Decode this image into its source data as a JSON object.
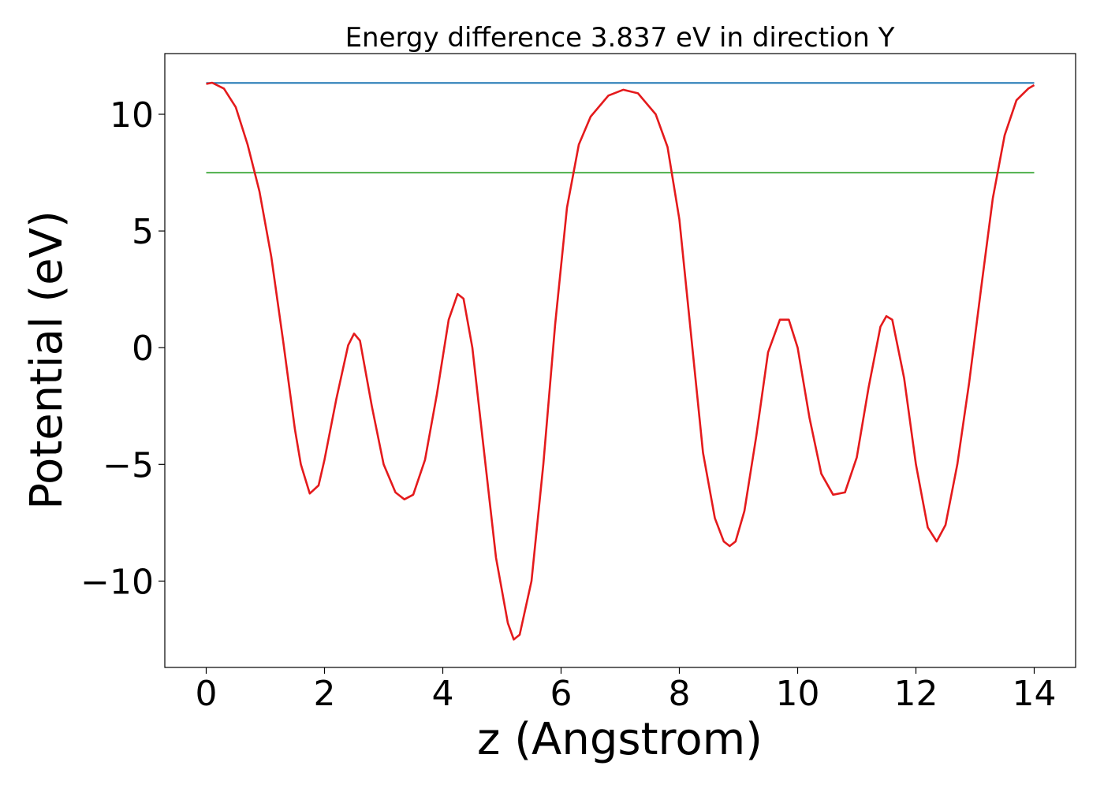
{
  "chart_data": {
    "type": "line",
    "title": "Energy difference 3.837 eV in direction Y",
    "xlabel": "z (Angstrom)",
    "ylabel": "Potential (eV)",
    "xlim": [
      -0.7,
      14.7
    ],
    "ylim": [
      -13.7,
      12.6
    ],
    "xticks": [
      0,
      2,
      4,
      6,
      8,
      10,
      12,
      14
    ],
    "yticks": [
      -10,
      -5,
      0,
      5,
      10
    ],
    "xtick_labels": [
      "0",
      "2",
      "4",
      "6",
      "8",
      "10",
      "12",
      "14"
    ],
    "ytick_labels": [
      "−10",
      "−5",
      "0",
      "5",
      "10"
    ],
    "grid": false,
    "legend": "none",
    "series": [
      {
        "color": "#e41a1c",
        "x": [
          0,
          0.1,
          0.3,
          0.5,
          0.7,
          0.9,
          1.1,
          1.3,
          1.5,
          1.6,
          1.75,
          1.9,
          2.0,
          2.2,
          2.4,
          2.5,
          2.6,
          2.8,
          3.0,
          3.2,
          3.35,
          3.5,
          3.7,
          3.9,
          4.1,
          4.25,
          4.35,
          4.5,
          4.7,
          4.9,
          5.1,
          5.2,
          5.3,
          5.5,
          5.7,
          5.9,
          6.1,
          6.3,
          6.5,
          6.8,
          7.05,
          7.3,
          7.6,
          7.8,
          8.0,
          8.2,
          8.4,
          8.6,
          8.75,
          8.85,
          8.95,
          9.1,
          9.3,
          9.5,
          9.7,
          9.85,
          10.0,
          10.2,
          10.4,
          10.6,
          10.8,
          11.0,
          11.2,
          11.4,
          11.5,
          11.6,
          11.8,
          12.0,
          12.2,
          12.35,
          12.5,
          12.7,
          12.9,
          13.1,
          13.3,
          13.5,
          13.7,
          13.9,
          14.0
        ],
        "y": [
          11.3,
          11.35,
          11.1,
          10.3,
          8.7,
          6.7,
          3.9,
          0.3,
          -3.5,
          -5.0,
          -6.25,
          -5.9,
          -4.8,
          -2.2,
          0.1,
          0.6,
          0.3,
          -2.5,
          -5.0,
          -6.2,
          -6.5,
          -6.3,
          -4.8,
          -2.0,
          1.2,
          2.3,
          2.1,
          0.0,
          -4.5,
          -9.0,
          -11.8,
          -12.5,
          -12.3,
          -10.0,
          -5.0,
          1.0,
          6.0,
          8.7,
          9.9,
          10.8,
          11.05,
          10.9,
          10.0,
          8.6,
          5.5,
          0.5,
          -4.5,
          -7.3,
          -8.3,
          -8.5,
          -8.3,
          -7.0,
          -3.8,
          -0.2,
          1.2,
          1.2,
          0.0,
          -3.0,
          -5.4,
          -6.3,
          -6.2,
          -4.7,
          -1.7,
          0.9,
          1.35,
          1.2,
          -1.3,
          -5.0,
          -7.7,
          -8.3,
          -7.6,
          -5.0,
          -1.5,
          2.5,
          6.4,
          9.1,
          10.6,
          11.1,
          11.25
        ]
      },
      {
        "color": "#1f77b4",
        "x": [
          0,
          14
        ],
        "y": [
          11.34,
          11.34
        ]
      },
      {
        "color": "#4daf4a",
        "x": [
          0,
          14
        ],
        "y": [
          7.5,
          7.5
        ]
      }
    ]
  }
}
